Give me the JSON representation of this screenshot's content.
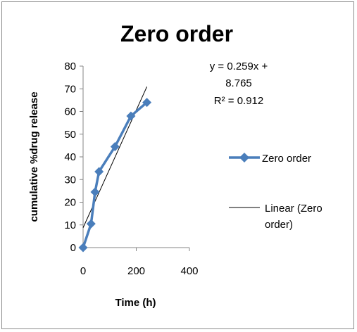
{
  "chart_data": {
    "type": "line",
    "title": "Zero order",
    "xlabel": "Time (h)",
    "ylabel": "cumulative %drug release",
    "xlim": [
      0,
      400
    ],
    "ylim": [
      0,
      80
    ],
    "xticks": [
      "0",
      "200",
      "400"
    ],
    "yticks": [
      "0",
      "10",
      "20",
      "30",
      "40",
      "50",
      "60",
      "70",
      "80"
    ],
    "grid": false,
    "legend_position": "right",
    "series": [
      {
        "name": "Zero order",
        "color": "#4a7ebb",
        "marker": "diamond",
        "x": [
          0,
          30,
          45,
          60,
          120,
          180,
          240
        ],
        "y": [
          0,
          10.5,
          24.5,
          33.5,
          44.5,
          58,
          64
        ]
      }
    ],
    "trendline": {
      "name": "Linear (Zero order)",
      "color": "#000000",
      "slope": 0.259,
      "intercept": 8.765,
      "x_range": [
        0,
        240
      ]
    },
    "annotation": {
      "line1": "y = 0.259x +",
      "line2": "8.765",
      "line3": "R² = 0.912"
    }
  },
  "legend": {
    "series_label": "Zero order",
    "trend_label_line1": "Linear (Zero",
    "trend_label_line2": "order)"
  }
}
